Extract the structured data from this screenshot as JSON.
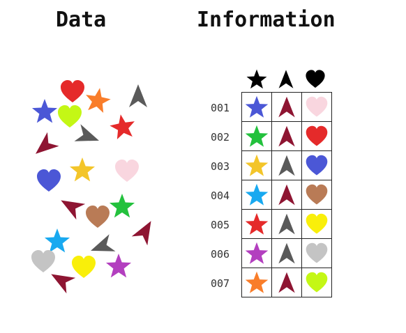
{
  "titles": {
    "left": "Data",
    "right": "Information"
  },
  "header_icons": [
    "star-icon",
    "arrow-icon",
    "heart-icon"
  ],
  "colors": {
    "blue": "#4b57d6",
    "green": "#23c13d",
    "gold": "#f3c52a",
    "sky": "#18a9f0",
    "red": "#e52a2a",
    "purple": "#b33fbf",
    "orange": "#f97d2a",
    "maroon": "#8e1532",
    "gray": "#5a5a5a",
    "pink": "#f9d6df",
    "brown": "#b97b56",
    "yellow": "#f9ef0a",
    "lightgray": "#c4c4c4",
    "lime": "#c4f715",
    "black": "#000000"
  },
  "rows": [
    {
      "id": "001",
      "star": "#4b57d6",
      "arrow": "#8e1532",
      "heart": "#f9d6df"
    },
    {
      "id": "002",
      "star": "#23c13d",
      "arrow": "#8e1532",
      "heart": "#e52a2a"
    },
    {
      "id": "003",
      "star": "#f3c52a",
      "arrow": "#5a5a5a",
      "heart": "#4b57d6"
    },
    {
      "id": "004",
      "star": "#18a9f0",
      "arrow": "#8e1532",
      "heart": "#b97b56"
    },
    {
      "id": "005",
      "star": "#e52a2a",
      "arrow": "#5a5a5a",
      "heart": "#f9ef0a"
    },
    {
      "id": "006",
      "star": "#b33fbf",
      "arrow": "#5a5a5a",
      "heart": "#c4c4c4"
    },
    {
      "id": "007",
      "star": "#f97d2a",
      "arrow": "#8e1532",
      "heart": "#c4f715"
    }
  ],
  "scatter": [
    {
      "shape": "star",
      "color": "#4b57d6"
    },
    {
      "shape": "heart",
      "color": "#e52a2a"
    },
    {
      "shape": "star",
      "color": "#f97d2a"
    },
    {
      "shape": "arrow",
      "color": "#5a5a5a"
    },
    {
      "shape": "heart",
      "color": "#c4f715"
    },
    {
      "shape": "star",
      "color": "#e52a2a"
    },
    {
      "shape": "arrow",
      "color": "#5a5a5a"
    },
    {
      "shape": "arrow",
      "color": "#8e1532"
    },
    {
      "shape": "star",
      "color": "#f3c52a"
    },
    {
      "shape": "heart",
      "color": "#4b57d6"
    },
    {
      "shape": "heart",
      "color": "#f9d6df"
    },
    {
      "shape": "arrow",
      "color": "#8e1532"
    },
    {
      "shape": "heart",
      "color": "#b97b56"
    },
    {
      "shape": "star",
      "color": "#23c13d"
    },
    {
      "shape": "arrow",
      "color": "#8e1532"
    },
    {
      "shape": "star",
      "color": "#18a9f0"
    },
    {
      "shape": "arrow",
      "color": "#5a5a5a"
    },
    {
      "shape": "heart",
      "color": "#c4c4c4"
    },
    {
      "shape": "heart",
      "color": "#f9ef0a"
    },
    {
      "shape": "star",
      "color": "#b33fbf"
    },
    {
      "shape": "arrow",
      "color": "#8e1532"
    }
  ]
}
